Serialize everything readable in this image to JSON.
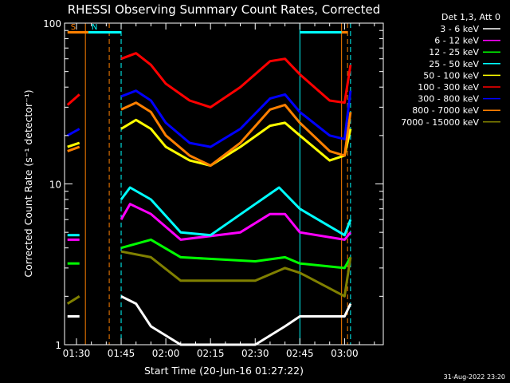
{
  "chart_data": {
    "type": "line",
    "title": "RHESSI Observing Summary Count Rates, Corrected",
    "xlabel": "Start Time (20-Jun-16 01:27:22)",
    "ylabel": "Corrected Count Rate (s⁻¹ detector⁻¹)",
    "yscale": "log",
    "ylim": [
      1,
      100
    ],
    "xlim": [
      "01:26",
      "03:13"
    ],
    "x_ticks": [
      "01:30",
      "01:45",
      "02:00",
      "02:15",
      "02:30",
      "02:45",
      "03:00"
    ],
    "y_ticks": [
      "1",
      "10",
      "100"
    ],
    "legend_title": "Det 1,3, Att 0",
    "legend_position": "top-right",
    "footer": "31-Aug-2022 23:20",
    "flags": [
      {
        "label": "S",
        "color": "#ff8000",
        "start": "01:27",
        "end": "01:34"
      },
      {
        "label": "N",
        "color": "#00ffff",
        "start": "01:34",
        "end": "01:45"
      },
      {
        "label": "",
        "color": "#00ffff",
        "start": "02:45",
        "end": "02:59"
      },
      {
        "label": "",
        "color": "#ff8000",
        "start": "02:59",
        "end": "03:01"
      }
    ],
    "markers": {
      "solid": [
        {
          "time": "01:33",
          "color": "#ff8000"
        },
        {
          "time": "02:45",
          "color": "#00ffff"
        },
        {
          "time": "02:59",
          "color": "#ff8000"
        }
      ],
      "dashed": [
        {
          "time": "01:41",
          "color": "#ff8000"
        },
        {
          "time": "01:45",
          "color": "#00ffff"
        },
        {
          "time": "03:01",
          "color": "#ff8000"
        },
        {
          "time": "03:02",
          "color": "#00ffff"
        }
      ]
    },
    "gaps": [
      [
        "01:33",
        "01:45"
      ],
      [
        "03:02",
        "03:13"
      ]
    ],
    "series": [
      {
        "name": "3 - 6 keV",
        "color": "#ffffff",
        "x": [
          "01:27",
          "01:31",
          "01:45",
          "01:50",
          "01:55",
          "02:05",
          "02:30",
          "02:40",
          "02:45",
          "03:00",
          "03:02"
        ],
        "y": [
          1.5,
          1.5,
          2.0,
          1.8,
          1.3,
          1.0,
          1.0,
          1.3,
          1.5,
          1.5,
          1.8
        ]
      },
      {
        "name": "6 - 12 keV",
        "color": "#ff00ff",
        "x": [
          "01:27",
          "01:31",
          "01:45",
          "01:48",
          "01:55",
          "02:05",
          "02:25",
          "02:35",
          "02:40",
          "02:45",
          "03:00",
          "03:02"
        ],
        "y": [
          4.5,
          4.5,
          6.0,
          7.5,
          6.5,
          4.5,
          5.0,
          6.5,
          6.5,
          5.0,
          4.5,
          5.0
        ]
      },
      {
        "name": "12 - 25 keV",
        "color": "#00ff00",
        "x": [
          "01:27",
          "01:31",
          "01:45",
          "01:55",
          "02:05",
          "02:30",
          "02:40",
          "02:45",
          "03:00",
          "03:02"
        ],
        "y": [
          3.2,
          3.2,
          4.0,
          4.5,
          3.5,
          3.3,
          3.5,
          3.2,
          3.0,
          3.5
        ]
      },
      {
        "name": "25 - 50 keV",
        "color": "#00ffff",
        "x": [
          "01:27",
          "01:31",
          "01:45",
          "01:48",
          "01:55",
          "02:05",
          "02:15",
          "02:30",
          "02:38",
          "02:45",
          "03:00",
          "03:02"
        ],
        "y": [
          4.8,
          4.8,
          8.0,
          9.5,
          8.0,
          5.0,
          4.8,
          7.5,
          9.5,
          7.0,
          4.8,
          6.0
        ]
      },
      {
        "name": "50 - 100 keV",
        "color": "#ffff00",
        "x": [
          "01:27",
          "01:31",
          "01:45",
          "01:50",
          "01:55",
          "02:00",
          "02:08",
          "02:15",
          "02:25",
          "02:35",
          "02:40",
          "02:45",
          "02:55",
          "03:00",
          "03:02"
        ],
        "y": [
          17,
          18,
          22,
          25,
          22,
          17,
          14,
          13,
          17,
          23,
          24,
          20,
          14,
          15,
          22
        ]
      },
      {
        "name": "100 - 300 keV",
        "color": "#ff0000",
        "x": [
          "01:27",
          "01:31",
          "01:45",
          "01:50",
          "01:55",
          "02:00",
          "02:08",
          "02:15",
          "02:25",
          "02:35",
          "02:40",
          "02:45",
          "02:55",
          "03:00",
          "03:02"
        ],
        "y": [
          31,
          36,
          60,
          65,
          55,
          42,
          33,
          30,
          40,
          58,
          60,
          48,
          33,
          32,
          55
        ]
      },
      {
        "name": "300 - 800 keV",
        "color": "#0000ff",
        "x": [
          "01:27",
          "01:31",
          "01:45",
          "01:50",
          "01:55",
          "02:00",
          "02:08",
          "02:15",
          "02:25",
          "02:35",
          "02:40",
          "02:45",
          "02:55",
          "03:00",
          "03:02"
        ],
        "y": [
          20,
          22,
          35,
          38,
          33,
          24,
          18,
          17,
          22,
          34,
          36,
          28,
          20,
          19,
          38
        ]
      },
      {
        "name": "800 - 7000 keV",
        "color": "#ff8000",
        "x": [
          "01:27",
          "01:31",
          "01:45",
          "01:50",
          "01:55",
          "02:00",
          "02:08",
          "02:15",
          "02:25",
          "02:35",
          "02:40",
          "02:45",
          "02:55",
          "03:00",
          "03:02"
        ],
        "y": [
          16,
          17,
          29,
          32,
          28,
          20,
          15,
          13,
          18,
          29,
          31,
          24,
          16,
          15,
          28
        ]
      },
      {
        "name": "7000 - 15000 keV",
        "color": "#808000",
        "x": [
          "01:27",
          "01:31",
          "01:45",
          "01:55",
          "02:05",
          "02:30",
          "02:40",
          "02:45",
          "03:00",
          "03:02"
        ],
        "y": [
          1.8,
          2.0,
          3.8,
          3.5,
          2.5,
          2.5,
          3.0,
          2.8,
          2.0,
          3.5
        ]
      }
    ]
  }
}
